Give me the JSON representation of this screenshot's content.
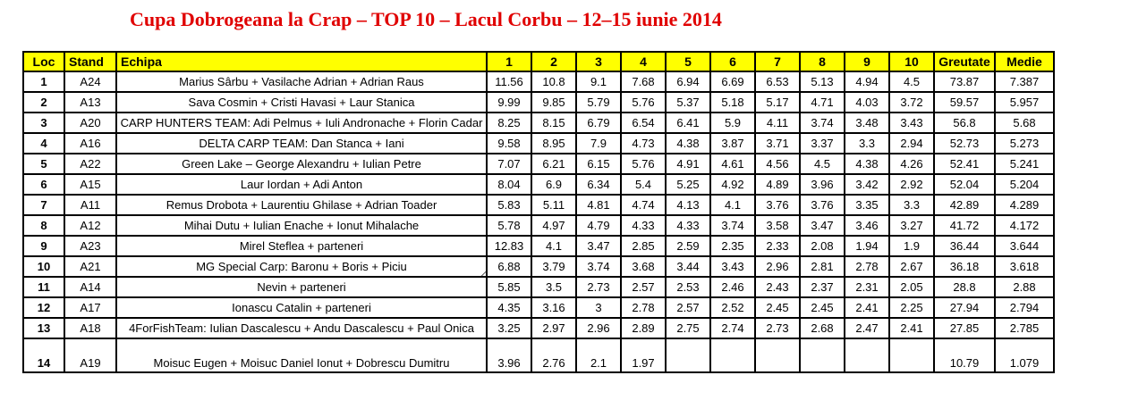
{
  "title": "Cupa Dobrogeana la Crap – TOP 10 – Lacul Corbu – 12–15 iunie 2014",
  "colors": {
    "title_text": "#e00000",
    "header_background": "#ffff00",
    "grid_border": "#000000",
    "cell_text": "#000000",
    "selection_handle": "#ffffff"
  },
  "table": {
    "headers": [
      "Loc",
      "Stand",
      "Echipa",
      "1",
      "2",
      "3",
      "4",
      "5",
      "6",
      "7",
      "8",
      "9",
      "10",
      "Greutate",
      "Medie"
    ],
    "rows": [
      {
        "loc": "1",
        "stand": "A24",
        "echipa": "Marius Sârbu + Vasilache Adrian + Adrian Raus",
        "catches": [
          "11.56",
          "10.8",
          "9.1",
          "7.68",
          "6.94",
          "6.69",
          "6.53",
          "5.13",
          "4.94",
          "4.5"
        ],
        "greutate": "73.87",
        "medie": "7.387"
      },
      {
        "loc": "2",
        "stand": "A13",
        "echipa": "Sava Cosmin + Cristi Havasi + Laur Stanica",
        "catches": [
          "9.99",
          "9.85",
          "5.79",
          "5.76",
          "5.37",
          "5.18",
          "5.17",
          "4.71",
          "4.03",
          "3.72"
        ],
        "greutate": "59.57",
        "medie": "5.957"
      },
      {
        "loc": "3",
        "stand": "A20",
        "echipa": "CARP HUNTERS TEAM: Adi Pelmus + Iuli Andronache + Florin Cadar",
        "catches": [
          "8.25",
          "8.15",
          "6.79",
          "6.54",
          "6.41",
          "5.9",
          "4.11",
          "3.74",
          "3.48",
          "3.43"
        ],
        "greutate": "56.8",
        "medie": "5.68"
      },
      {
        "loc": "4",
        "stand": "A16",
        "echipa": "DELTA CARP TEAM: Dan Stanca + Iani",
        "catches": [
          "9.58",
          "8.95",
          "7.9",
          "4.73",
          "4.38",
          "3.87",
          "3.71",
          "3.37",
          "3.3",
          "2.94"
        ],
        "greutate": "52.73",
        "medie": "5.273"
      },
      {
        "loc": "5",
        "stand": "A22",
        "echipa": "Green Lake – George Alexandru + Iulian Petre",
        "catches": [
          "7.07",
          "6.21",
          "6.15",
          "5.76",
          "4.91",
          "4.61",
          "4.56",
          "4.5",
          "4.38",
          "4.26"
        ],
        "greutate": "52.41",
        "medie": "5.241"
      },
      {
        "loc": "6",
        "stand": "A15",
        "echipa": "Laur Iordan + Adi Anton",
        "catches": [
          "8.04",
          "6.9",
          "6.34",
          "5.4",
          "5.25",
          "4.92",
          "4.89",
          "3.96",
          "3.42",
          "2.92"
        ],
        "greutate": "52.04",
        "medie": "5.204"
      },
      {
        "loc": "7",
        "stand": "A11",
        "echipa": "Remus Drobota + Laurentiu Ghilase + Adrian Toader",
        "catches": [
          "5.83",
          "5.11",
          "4.81",
          "4.74",
          "4.13",
          "4.1",
          "3.76",
          "3.76",
          "3.35",
          "3.3"
        ],
        "greutate": "42.89",
        "medie": "4.289"
      },
      {
        "loc": "8",
        "stand": "A12",
        "echipa": "Mihai Dutu + Iulian Enache + Ionut Mihalache",
        "catches": [
          "5.78",
          "4.97",
          "4.79",
          "4.33",
          "4.33",
          "3.74",
          "3.58",
          "3.47",
          "3.46",
          "3.27"
        ],
        "greutate": "41.72",
        "medie": "4.172"
      },
      {
        "loc": "9",
        "stand": "A23",
        "echipa": "Mirel Steflea + parteneri",
        "catches": [
          "12.83",
          "4.1",
          "3.47",
          "2.85",
          "2.59",
          "2.35",
          "2.33",
          "2.08",
          "1.94",
          "1.9"
        ],
        "greutate": "36.44",
        "medie": "3.644"
      },
      {
        "loc": "10",
        "stand": "A21",
        "echipa": "MG Special Carp: Baronu + Boris + Piciu",
        "catches": [
          "6.88",
          "3.79",
          "3.74",
          "3.68",
          "3.44",
          "3.43",
          "2.96",
          "2.81",
          "2.78",
          "2.67"
        ],
        "greutate": "36.18",
        "medie": "3.618",
        "selected": true
      },
      {
        "loc": "11",
        "stand": "A14",
        "echipa": "Nevin + parteneri",
        "catches": [
          "5.85",
          "3.5",
          "2.73",
          "2.57",
          "2.53",
          "2.46",
          "2.43",
          "2.37",
          "2.31",
          "2.05"
        ],
        "greutate": "28.8",
        "medie": "2.88"
      },
      {
        "loc": "12",
        "stand": "A17",
        "echipa": "Ionascu Catalin + parteneri",
        "catches": [
          "4.35",
          "3.16",
          "3",
          "2.78",
          "2.57",
          "2.52",
          "2.45",
          "2.45",
          "2.41",
          "2.25"
        ],
        "greutate": "27.94",
        "medie": "2.794"
      },
      {
        "loc": "13",
        "stand": "A18",
        "echipa": "4ForFishTeam: Iulian Dascalescu + Andu Dascalescu + Paul Onica",
        "catches": [
          "3.25",
          "2.97",
          "2.96",
          "2.89",
          "2.75",
          "2.74",
          "2.73",
          "2.68",
          "2.47",
          "2.41"
        ],
        "greutate": "27.85",
        "medie": "2.785"
      },
      {
        "loc": "14",
        "stand": "A19",
        "echipa": "Moisuc Eugen + Moisuc Daniel Ionut + Dobrescu Dumitru",
        "catches": [
          "3.96",
          "2.76",
          "2.1",
          "1.97",
          "",
          "",
          "",
          "",
          "",
          ""
        ],
        "greutate": "10.79",
        "medie": "1.079",
        "tall": true
      }
    ]
  }
}
